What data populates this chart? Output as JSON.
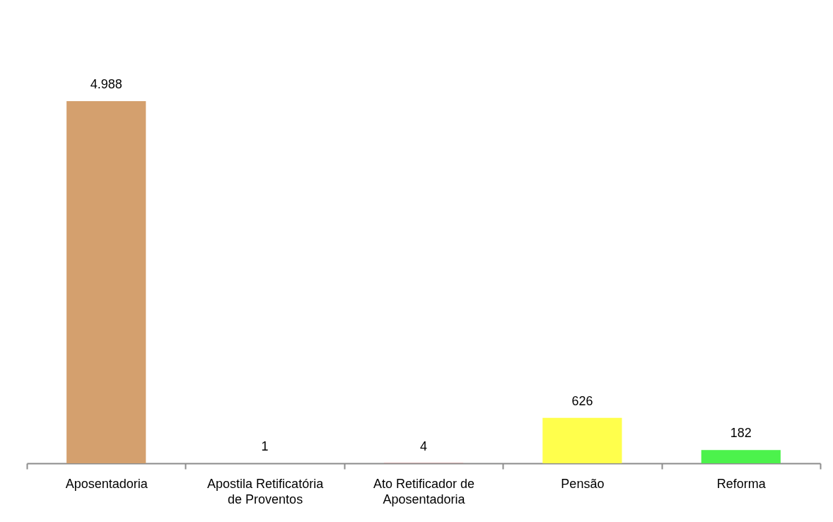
{
  "chart_data": {
    "type": "bar",
    "categories": [
      "Aposentadoria",
      "Apostila Retificatória de Proventos",
      "Ato Retificador de Aposentadoria",
      "Pensão",
      "Reforma"
    ],
    "values": [
      4988,
      1,
      4,
      626,
      182
    ],
    "colors": [
      "#d4a06e",
      "#95b3d7",
      "#d99694",
      "#ffff4c",
      "#4cf24c"
    ],
    "value_labels": [
      "4.988",
      "1",
      "4",
      "626",
      "182"
    ],
    "tick_labels": "x"
  }
}
